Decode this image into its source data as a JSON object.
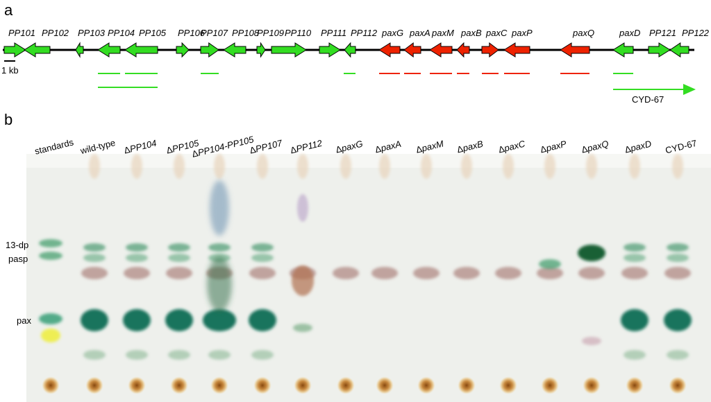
{
  "panel_a_label": "a",
  "panel_b_label": "b",
  "scale_bar_label": "1 kb",
  "genes": [
    {
      "label": "PP101",
      "dir": "R",
      "color": "#33dd22"
    },
    {
      "label": "PP102",
      "dir": "L",
      "color": "#33dd22"
    },
    {
      "label": "PP103",
      "dir": "L",
      "color": "#33dd22"
    },
    {
      "label": "PP104",
      "dir": "L",
      "color": "#33dd22"
    },
    {
      "label": "PP105",
      "dir": "L",
      "color": "#33dd22"
    },
    {
      "label": "PP106",
      "dir": "R",
      "color": "#33dd22"
    },
    {
      "label": "PP107",
      "dir": "R",
      "color": "#33dd22"
    },
    {
      "label": "PP108",
      "dir": "L",
      "color": "#33dd22"
    },
    {
      "label": "PP109",
      "dir": "R",
      "color": "#33dd22"
    },
    {
      "label": "PP110",
      "dir": "R",
      "color": "#33dd22"
    },
    {
      "label": "PP111",
      "dir": "R",
      "color": "#33dd22"
    },
    {
      "label": "PP112",
      "dir": "L",
      "color": "#33dd22"
    },
    {
      "label": "paxG",
      "dir": "L",
      "color": "#ee2200"
    },
    {
      "label": "paxA",
      "dir": "L",
      "color": "#ee2200"
    },
    {
      "label": "paxM",
      "dir": "L",
      "color": "#ee2200"
    },
    {
      "label": "paxB",
      "dir": "L",
      "color": "#ee2200"
    },
    {
      "label": "paxC",
      "dir": "R",
      "color": "#ee2200"
    },
    {
      "label": "paxP",
      "dir": "L",
      "color": "#ee2200"
    },
    {
      "label": "paxQ",
      "dir": "L",
      "color": "#ee2200"
    },
    {
      "label": "paxD",
      "dir": "L",
      "color": "#33dd22"
    },
    {
      "label": "PP121",
      "dir": "R",
      "color": "#33dd22"
    },
    {
      "label": "PP122",
      "dir": "L",
      "color": "#33dd22"
    }
  ],
  "construct_label": "CYD-67",
  "lanes": [
    {
      "prefix": "",
      "label": "standards"
    },
    {
      "prefix": "",
      "label": "wild-type"
    },
    {
      "prefix": "Δ",
      "label": "PP104"
    },
    {
      "prefix": "Δ",
      "label": "PP105"
    },
    {
      "prefix": "Δ",
      "label": "PP104-PP105"
    },
    {
      "prefix": "Δ",
      "label": "PP107"
    },
    {
      "prefix": "Δ",
      "label": "PP112"
    },
    {
      "prefix": "Δ",
      "label": "paxG"
    },
    {
      "prefix": "Δ",
      "label": "paxA"
    },
    {
      "prefix": "Δ",
      "label": "paxM"
    },
    {
      "prefix": "Δ",
      "label": "paxB"
    },
    {
      "prefix": "Δ",
      "label": "paxC"
    },
    {
      "prefix": "Δ",
      "label": "paxP"
    },
    {
      "prefix": "Δ",
      "label": "paxQ"
    },
    {
      "prefix": "Δ",
      "label": "paxD"
    },
    {
      "prefix": "",
      "label": "CYD-67"
    }
  ],
  "compounds": {
    "dp13": "13-dp",
    "pasp": "pasp",
    "pax": "pax"
  }
}
